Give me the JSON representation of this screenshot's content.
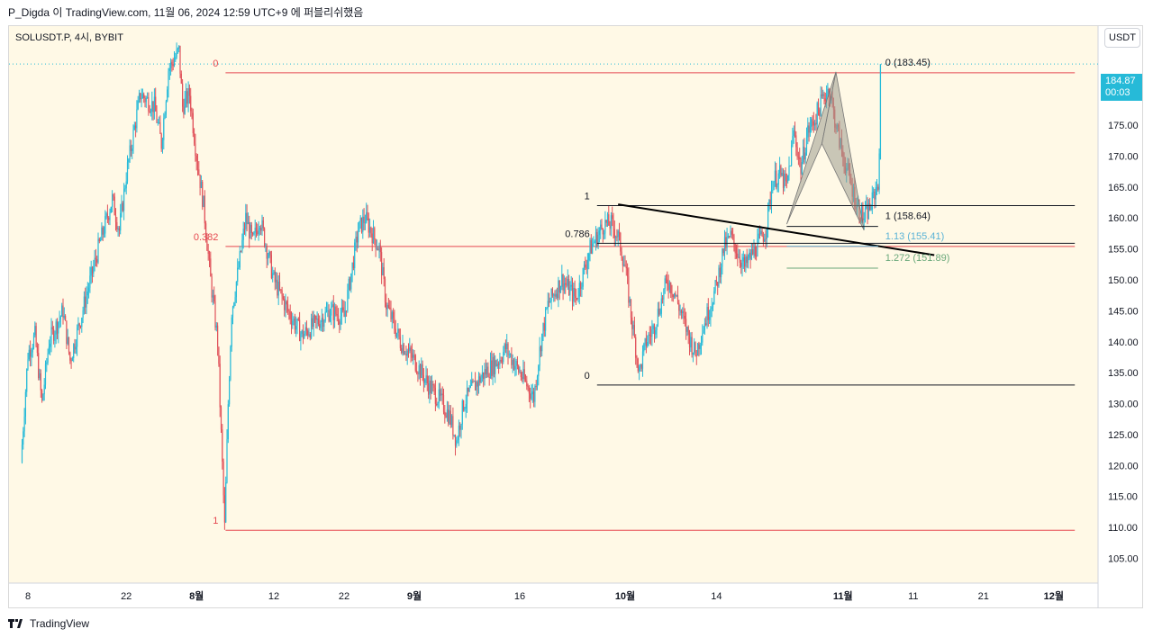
{
  "header": {
    "attribution": "P_Digda 이 TradingView.com, 11월 06, 2024 12:59 UTC+9 에 퍼블리쉬했음"
  },
  "chart": {
    "symbol": "SOLUSDT.P, 4시, BYBIT",
    "currency": "USDT",
    "last_price": "184.87",
    "countdown": "00:03"
  },
  "footer": {
    "brand": "TradingView",
    "logo_icon": "tradingview-logo-icon"
  },
  "colors": {
    "background": "#fff9e6",
    "up": "#26bad8",
    "down": "#e0525a",
    "fib_red": "#e5474f",
    "fib_black": "#131722",
    "fib_blue": "#5bb3d6",
    "fib_green": "#6aa87a",
    "pattern_fill": "#9c9c8e"
  },
  "chart_data": {
    "type": "candlestick",
    "ylim": [
      101,
      191
    ],
    "y_ticks": [
      "105.00",
      "110.00",
      "115.00",
      "120.00",
      "125.00",
      "130.00",
      "135.00",
      "140.00",
      "145.00",
      "150.00",
      "155.00",
      "160.00",
      "165.00",
      "170.00",
      "175.00",
      "180.00"
    ],
    "x_ticks": [
      "8",
      "22",
      "8월",
      "12",
      "22",
      "9월",
      "16",
      "10월",
      "14",
      "11월",
      "11",
      "21",
      "12월"
    ],
    "bold_x_ticks": [
      "8월",
      "9월",
      "10월",
      "11월",
      "12월"
    ],
    "x_tick_dates": [
      "07-08",
      "07-22",
      "08-01",
      "08-12",
      "08-22",
      "09-01",
      "09-16",
      "10-01",
      "10-14",
      "11-01",
      "11-11",
      "11-21",
      "12-01"
    ],
    "price_path": [
      [
        "07-07 00:00",
        120.5
      ],
      [
        "07-08 00:00",
        138.0
      ],
      [
        "07-09 00:00",
        141.0
      ],
      [
        "07-10 00:00",
        130.0
      ],
      [
        "07-11 00:00",
        140.0
      ],
      [
        "07-13 00:00",
        145.0
      ],
      [
        "07-14 00:00",
        137.0
      ],
      [
        "07-16 00:00",
        146.0
      ],
      [
        "07-18 00:00",
        155.0
      ],
      [
        "07-20 00:00",
        163.0
      ],
      [
        "07-21 00:00",
        158.0
      ],
      [
        "07-22 00:00",
        167.0
      ],
      [
        "07-24 00:00",
        180.0
      ],
      [
        "07-26 00:00",
        178.0
      ],
      [
        "07-27 00:00",
        172.0
      ],
      [
        "07-28 00:00",
        184.0
      ],
      [
        "07-29 12:00",
        187.0
      ],
      [
        "07-30 00:00",
        178.0
      ],
      [
        "07-31 00:00",
        180.0
      ],
      [
        "08-01 00:00",
        170.0
      ],
      [
        "08-02 00:00",
        162.0
      ],
      [
        "08-03 00:00",
        150.0
      ],
      [
        "08-04 00:00",
        140.0
      ],
      [
        "08-05 00:00",
        110.0
      ],
      [
        "08-05 12:00",
        130.0
      ],
      [
        "08-06 00:00",
        145.0
      ],
      [
        "08-07 00:00",
        152.0
      ],
      [
        "08-08 00:00",
        160.0
      ],
      [
        "08-09 00:00",
        156.0
      ],
      [
        "08-10 00:00",
        160.0
      ],
      [
        "08-12 00:00",
        150.0
      ],
      [
        "08-14 00:00",
        145.0
      ],
      [
        "08-16 00:00",
        141.0
      ],
      [
        "08-18 00:00",
        143.0
      ],
      [
        "08-20 00:00",
        145.0
      ],
      [
        "08-22 00:00",
        144.0
      ],
      [
        "08-24 00:00",
        158.0
      ],
      [
        "08-25 00:00",
        160.0
      ],
      [
        "08-27 00:00",
        155.0
      ],
      [
        "08-28 00:00",
        146.0
      ],
      [
        "08-30 00:00",
        140.0
      ],
      [
        "09-01 00:00",
        137.0
      ],
      [
        "09-03 00:00",
        133.0
      ],
      [
        "09-05 00:00",
        130.0
      ],
      [
        "09-06 00:00",
        128.0
      ],
      [
        "09-07 00:00",
        124.0
      ],
      [
        "09-08 00:00",
        130.0
      ],
      [
        "09-09 00:00",
        132.0
      ],
      [
        "09-11 00:00",
        135.0
      ],
      [
        "09-13 00:00",
        137.0
      ],
      [
        "09-14 00:00",
        139.0
      ],
      [
        "09-16 00:00",
        135.0
      ],
      [
        "09-18 00:00",
        131.0
      ],
      [
        "09-19 00:00",
        140.0
      ],
      [
        "09-20 00:00",
        146.0
      ],
      [
        "09-22 00:00",
        150.0
      ],
      [
        "09-24 00:00",
        147.0
      ],
      [
        "09-26 00:00",
        155.0
      ],
      [
        "09-28 00:00",
        159.0
      ],
      [
        "09-29 00:00",
        159.0
      ],
      [
        "09-30 00:00",
        157.0
      ],
      [
        "10-01 00:00",
        152.0
      ],
      [
        "10-02 00:00",
        143.0
      ],
      [
        "10-03 00:00",
        135.0
      ],
      [
        "10-04 00:00",
        140.0
      ],
      [
        "10-05 00:00",
        142.0
      ],
      [
        "10-07 00:00",
        150.0
      ],
      [
        "10-08 00:00",
        148.0
      ],
      [
        "10-10 00:00",
        141.0
      ],
      [
        "10-11 00:00",
        138.0
      ],
      [
        "10-12 00:00",
        142.0
      ],
      [
        "10-14 00:00",
        149.0
      ],
      [
        "10-15 00:00",
        155.0
      ],
      [
        "10-16 00:00",
        157.0
      ],
      [
        "10-18 00:00",
        152.0
      ],
      [
        "10-19 00:00",
        154.0
      ],
      [
        "10-21 00:00",
        158.0
      ],
      [
        "10-22 00:00",
        166.0
      ],
      [
        "10-23 00:00",
        167.0
      ],
      [
        "10-24 00:00",
        165.0
      ],
      [
        "10-25 00:00",
        174.0
      ],
      [
        "10-26 00:00",
        168.0
      ],
      [
        "10-27 00:00",
        174.0
      ],
      [
        "10-28 00:00",
        176.0
      ],
      [
        "10-29 00:00",
        179.0
      ],
      [
        "10-30 00:00",
        181.0
      ],
      [
        "10-31 00:00",
        175.0
      ],
      [
        "11-01 00:00",
        170.0
      ],
      [
        "11-02 00:00",
        166.0
      ],
      [
        "11-03 00:00",
        162.0
      ],
      [
        "11-04 00:00",
        160.0
      ],
      [
        "11-05 00:00",
        162.0
      ],
      [
        "11-06 00:00",
        166.0
      ],
      [
        "11-06 04:00",
        169.0
      ],
      [
        "11-06 08:00",
        184.87
      ]
    ],
    "last_price": 184.87,
    "fib_retracement_red": {
      "from": "07-29",
      "to": "08-05",
      "right_date": "12-04",
      "levels": [
        {
          "label": "0",
          "price": 183.45
        },
        {
          "label": "0.382",
          "price": 155.4
        },
        {
          "label": "1",
          "price": 109.55
        }
      ]
    },
    "fib_retracement_black": {
      "from": "09-27",
      "right_date": "12-04",
      "levels": [
        {
          "label": "1",
          "price": 162.0
        },
        {
          "label": "0.786",
          "price": 155.9
        },
        {
          "label": "0",
          "price": 133.0
        }
      ]
    },
    "trendline": {
      "from": [
        "09-30",
        162.2
      ],
      "to": [
        "11-14",
        154.0
      ]
    },
    "harmonic_pattern": {
      "points": [
        [
          "10-24",
          159.0
        ],
        [
          "10-31",
          183.6
        ],
        [
          "10-29",
          172.0
        ],
        [
          "11-04",
          158.0
        ]
      ],
      "x_start": "10-24",
      "x_end": "11-06"
    },
    "fib_extension": {
      "x_start": "10-24",
      "x_end": "11-06",
      "levels": [
        {
          "label": "0 (183.45)",
          "price": 183.45,
          "color": "#131722"
        },
        {
          "label": "1 (158.64)",
          "price": 158.64,
          "color": "#131722"
        },
        {
          "label": "1.13 (155.41)",
          "price": 155.41,
          "color": "#5bb3d6"
        },
        {
          "label": "1.272 (151.89)",
          "price": 151.89,
          "color": "#6aa87a"
        }
      ]
    },
    "current_price_dotted_line": 184.87
  }
}
